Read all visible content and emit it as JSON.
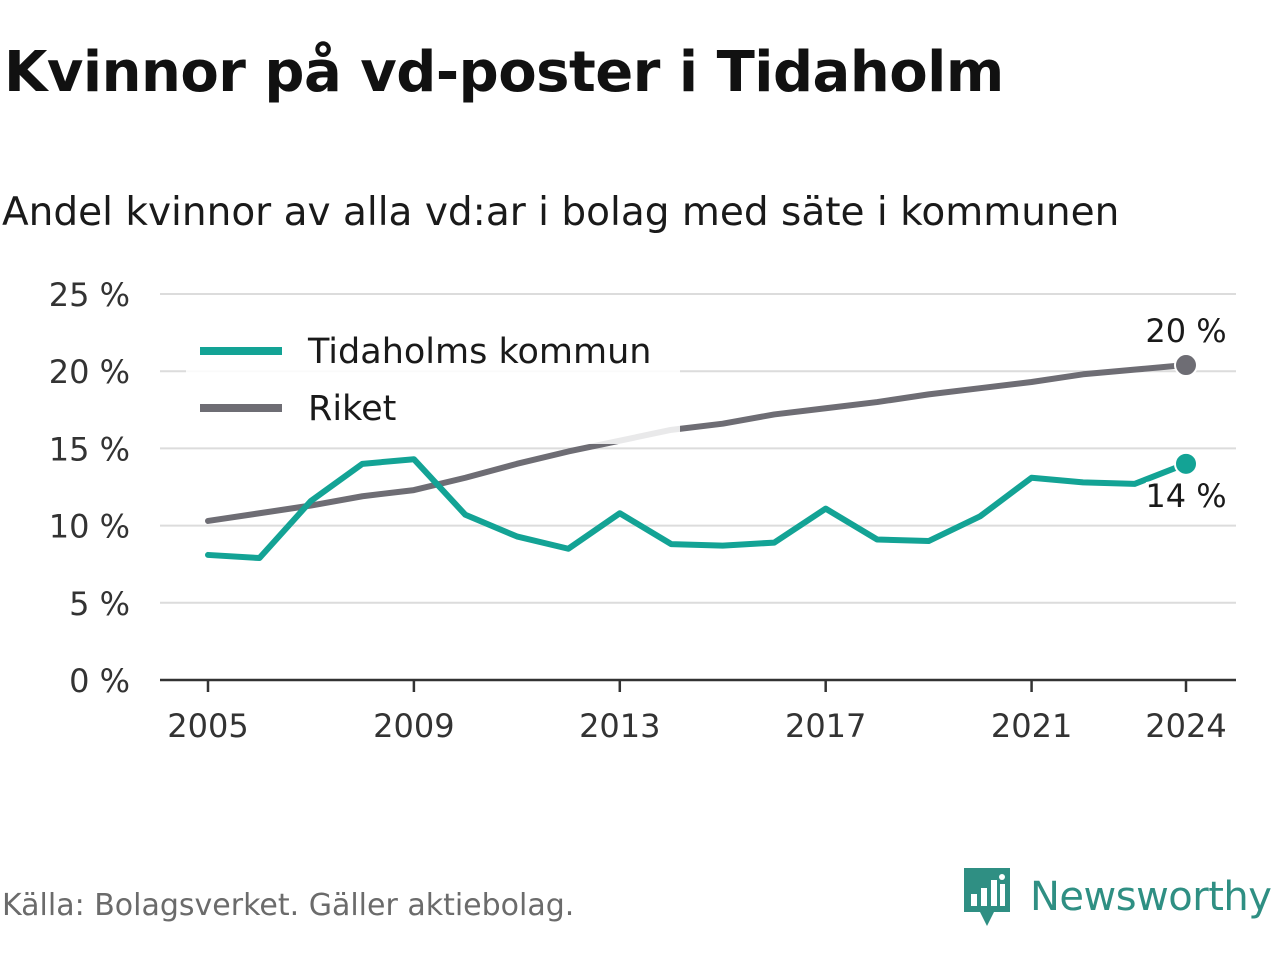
{
  "header": {
    "title": "Kvinnor på vd-poster i Tidaholm",
    "subtitle": "Andel kvinnor av alla vd:ar i bolag med säte i kommunen"
  },
  "footer": {
    "source": "Källa: Bolagsverket. Gäller aktiebolag.",
    "brand": "Newsworthy"
  },
  "colors": {
    "tidaholm": "#13a395",
    "riket": "#6e6d74",
    "grid": "#dcdcdc",
    "axis": "#333333",
    "brand": "#2f8f83"
  },
  "icons": {
    "brand_logo": "newsworthy-logo-icon"
  },
  "chart_data": {
    "type": "line",
    "title": "Kvinnor på vd-poster i Tidaholm",
    "subtitle": "Andel kvinnor av alla vd:ar i bolag med säte i kommunen",
    "xlabel": "",
    "ylabel": "",
    "x": [
      2005,
      2006,
      2007,
      2008,
      2009,
      2010,
      2011,
      2012,
      2013,
      2014,
      2015,
      2016,
      2017,
      2018,
      2019,
      2020,
      2021,
      2022,
      2023,
      2024
    ],
    "x_ticks": [
      "2005",
      "2009",
      "2013",
      "2017",
      "2021",
      "2024"
    ],
    "y_ticks": [
      "0 %",
      "5 %",
      "10 %",
      "15 %",
      "20 %",
      "25 %"
    ],
    "ylim": [
      0,
      25
    ],
    "grid": true,
    "legend_position": "top-left",
    "series": [
      {
        "name": "Tidaholms kommun",
        "color": "#13a395",
        "values": [
          8.1,
          7.9,
          11.6,
          14.0,
          14.3,
          10.7,
          9.3,
          8.5,
          10.8,
          8.8,
          8.7,
          8.9,
          11.1,
          9.1,
          9.0,
          10.6,
          13.1,
          12.8,
          12.7,
          14.0
        ],
        "end_label": "14 %"
      },
      {
        "name": "Riket",
        "color": "#6e6d74",
        "values": [
          10.3,
          10.8,
          11.3,
          11.9,
          12.3,
          13.1,
          14.0,
          14.8,
          15.5,
          16.2,
          16.6,
          17.2,
          17.6,
          18.0,
          18.5,
          18.9,
          19.3,
          19.8,
          20.1,
          20.4
        ],
        "end_label": "20 %"
      }
    ]
  }
}
